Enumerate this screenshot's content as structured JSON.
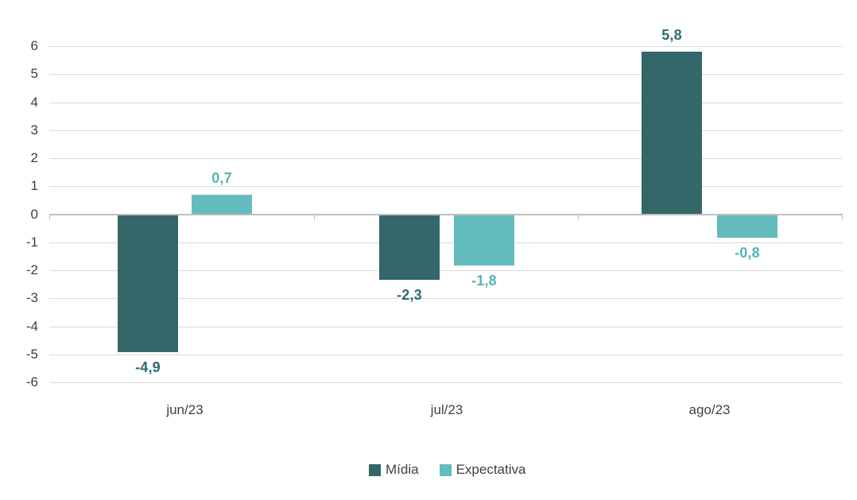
{
  "chart_data": {
    "type": "bar",
    "title": "",
    "categories": [
      "jun/23",
      "jul/23",
      "ago/23"
    ],
    "series": [
      {
        "name": "Mídia",
        "color": "#346769",
        "label_color": "#2e6b6e",
        "values": [
          -4.9,
          -2.3,
          5.8
        ],
        "labels": [
          "-4,9",
          "-2,3",
          "5,8"
        ]
      },
      {
        "name": "Expectativa",
        "color": "#64bcbf",
        "label_color": "#55b4b8",
        "values": [
          0.7,
          -1.8,
          -0.8
        ],
        "labels": [
          "0,7",
          "-1,8",
          "-0,8"
        ]
      }
    ],
    "y_axis": {
      "min": -6,
      "max": 6,
      "step": 1,
      "tick_labels": [
        "6",
        "5",
        "4",
        "3",
        "2",
        "1",
        "0",
        "-1",
        "-2",
        "-3",
        "-4",
        "-5",
        "-6"
      ]
    },
    "ylim": [
      -6,
      6
    ],
    "grid": true,
    "decimal_separator": ",",
    "legend_position": "bottom",
    "colors": {
      "grid": "#d9d9d9",
      "zero_line": "#bfbfbf",
      "axis_text": "#3f3f3f",
      "background": "#ffffff"
    }
  }
}
